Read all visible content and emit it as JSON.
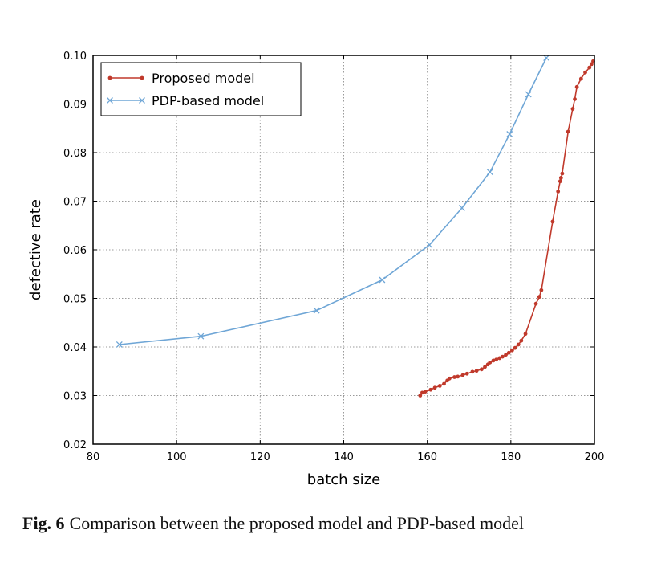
{
  "chart_data": {
    "type": "line",
    "xlabel": "batch size",
    "ylabel": "defective rate",
    "xlim": [
      80,
      200
    ],
    "ylim": [
      0.02,
      0.1
    ],
    "xticks": [
      "80",
      "100",
      "120",
      "140",
      "160",
      "180",
      "200"
    ],
    "yticks": [
      "0.02",
      "0.03",
      "0.04",
      "0.05",
      "0.06",
      "0.07",
      "0.08",
      "0.09",
      "0.10"
    ],
    "grid": true,
    "legend_position": "top-left",
    "series": [
      {
        "name": "Proposed model",
        "color": "#c0392b",
        "marker": "dot",
        "points": [
          [
            158.3,
            0.03
          ],
          [
            158.8,
            0.0306
          ],
          [
            159.5,
            0.0308
          ],
          [
            160.8,
            0.0312
          ],
          [
            161.8,
            0.0316
          ],
          [
            163.0,
            0.032
          ],
          [
            164.0,
            0.0324
          ],
          [
            164.8,
            0.0331
          ],
          [
            165.3,
            0.0335
          ],
          [
            166.5,
            0.0338
          ],
          [
            167.3,
            0.0339
          ],
          [
            168.5,
            0.0342
          ],
          [
            169.5,
            0.0345
          ],
          [
            170.8,
            0.0349
          ],
          [
            171.8,
            0.0351
          ],
          [
            173.0,
            0.0354
          ],
          [
            173.8,
            0.0359
          ],
          [
            174.5,
            0.0364
          ],
          [
            175.0,
            0.0368
          ],
          [
            175.8,
            0.0372
          ],
          [
            176.5,
            0.0374
          ],
          [
            177.3,
            0.0377
          ],
          [
            178.0,
            0.038
          ],
          [
            178.8,
            0.0384
          ],
          [
            179.5,
            0.0388
          ],
          [
            180.3,
            0.0393
          ],
          [
            181.0,
            0.0398
          ],
          [
            181.8,
            0.0405
          ],
          [
            182.5,
            0.0413
          ],
          [
            183.5,
            0.0427
          ],
          [
            186.0,
            0.0489
          ],
          [
            186.8,
            0.0503
          ],
          [
            187.3,
            0.0517
          ],
          [
            190.0,
            0.0658
          ],
          [
            191.3,
            0.072
          ],
          [
            191.8,
            0.0741
          ],
          [
            192.0,
            0.0748
          ],
          [
            192.3,
            0.0757
          ],
          [
            193.7,
            0.0843
          ],
          [
            194.8,
            0.089
          ],
          [
            195.3,
            0.091
          ],
          [
            195.8,
            0.0935
          ],
          [
            196.8,
            0.0952
          ],
          [
            197.8,
            0.0965
          ],
          [
            198.8,
            0.0975
          ],
          [
            199.3,
            0.0982
          ],
          [
            199.7,
            0.0988
          ]
        ]
      },
      {
        "name": "PDP-based model",
        "color": "#6fa6d6",
        "marker": "x",
        "points": [
          [
            86.3,
            0.0405
          ],
          [
            105.8,
            0.0422
          ],
          [
            133.5,
            0.0475
          ],
          [
            149.2,
            0.0538
          ],
          [
            160.5,
            0.061
          ],
          [
            168.3,
            0.0686
          ],
          [
            175.0,
            0.076
          ],
          [
            179.7,
            0.0838
          ],
          [
            184.2,
            0.092
          ],
          [
            188.5,
            0.0995
          ]
        ]
      }
    ]
  },
  "caption": {
    "label": "Fig. 6",
    "text": "Comparison between the proposed model and PDP-based model"
  }
}
